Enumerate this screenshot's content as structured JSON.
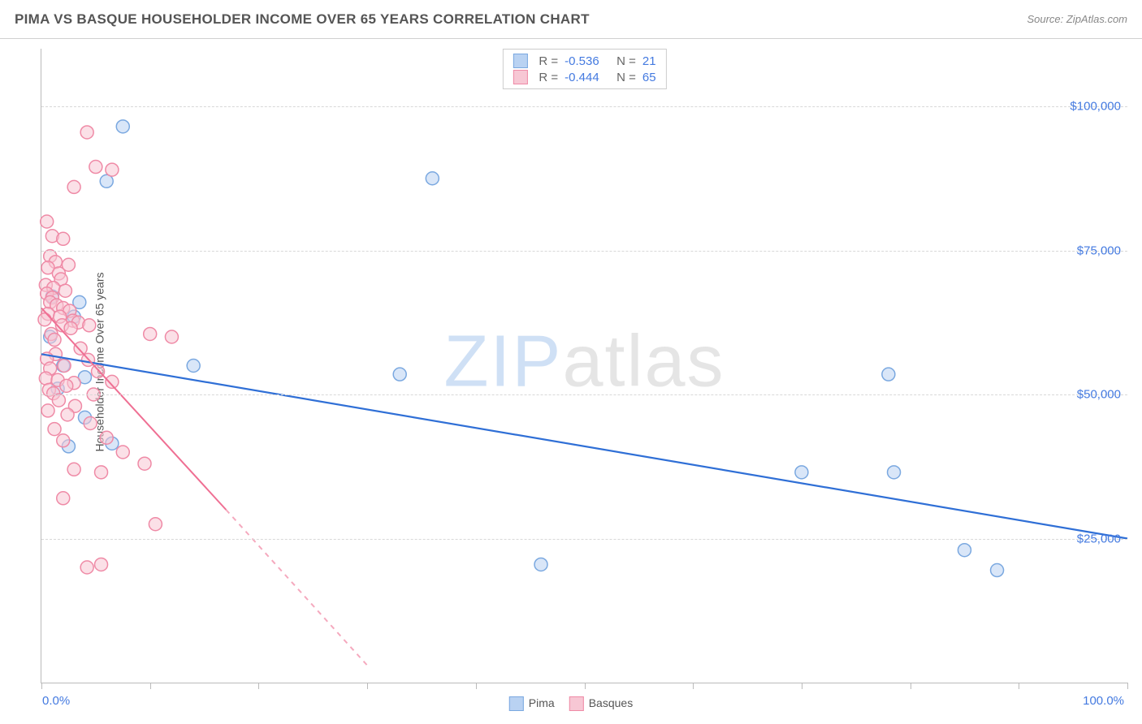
{
  "header": {
    "title": "PIMA VS BASQUE HOUSEHOLDER INCOME OVER 65 YEARS CORRELATION CHART",
    "source": "Source: ZipAtlas.com"
  },
  "watermark": {
    "part1": "ZIP",
    "part2": "atlas"
  },
  "chart": {
    "type": "scatter",
    "ylabel": "Householder Income Over 65 years",
    "xlim": [
      0,
      100
    ],
    "ylim": [
      0,
      110000
    ],
    "xticks_pct": [
      0,
      10,
      20,
      30,
      40,
      50,
      60,
      70,
      80,
      90,
      100
    ],
    "yticks": [
      {
        "value": 25000,
        "label": "$25,000"
      },
      {
        "value": 50000,
        "label": "$50,000"
      },
      {
        "value": 75000,
        "label": "$75,000"
      },
      {
        "value": 100000,
        "label": "$100,000"
      }
    ],
    "xaxis_labels": {
      "left": "0.0%",
      "right": "100.0%"
    },
    "grid_color": "#d8d8d8",
    "background_color": "#ffffff",
    "marker_radius": 8,
    "marker_stroke_width": 1.5,
    "series": [
      {
        "name": "Pima",
        "fill": "#b9d2f2",
        "stroke": "#7aa8e0",
        "fill_opacity": 0.55,
        "r": -0.536,
        "n": 21,
        "trend": {
          "x0": 0,
          "y0": 57000,
          "x1": 100,
          "y1": 25000,
          "stroke": "#2f6fd6",
          "width": 2.2,
          "dash_after_x": null
        },
        "points": [
          [
            7.5,
            96500
          ],
          [
            6.0,
            87000
          ],
          [
            36.0,
            87500
          ],
          [
            1.0,
            67000
          ],
          [
            3.5,
            66000
          ],
          [
            3.0,
            63500
          ],
          [
            0.8,
            60000
          ],
          [
            2.0,
            55000
          ],
          [
            4.0,
            53000
          ],
          [
            1.5,
            51000
          ],
          [
            14.0,
            55000
          ],
          [
            33.0,
            53500
          ],
          [
            4.0,
            46000
          ],
          [
            6.5,
            41500
          ],
          [
            2.5,
            41000
          ],
          [
            78.0,
            53500
          ],
          [
            70.0,
            36500
          ],
          [
            78.5,
            36500
          ],
          [
            85.0,
            23000
          ],
          [
            88.0,
            19500
          ],
          [
            46.0,
            20500
          ]
        ]
      },
      {
        "name": "Basques",
        "fill": "#f7c7d4",
        "stroke": "#ef8aa6",
        "fill_opacity": 0.55,
        "r": -0.444,
        "n": 65,
        "trend": {
          "x0": 0,
          "y0": 65000,
          "x1_solid": 17,
          "y1_solid": 30000,
          "x1": 30,
          "y1": 3000,
          "stroke": "#ef6f93",
          "width": 2,
          "dash_after_x": 17
        },
        "points": [
          [
            4.2,
            95500
          ],
          [
            5.0,
            89500
          ],
          [
            6.5,
            89000
          ],
          [
            3.0,
            86000
          ],
          [
            0.5,
            80000
          ],
          [
            1.0,
            77500
          ],
          [
            2.0,
            77000
          ],
          [
            0.8,
            74000
          ],
          [
            1.3,
            73000
          ],
          [
            2.5,
            72500
          ],
          [
            0.6,
            72000
          ],
          [
            1.6,
            71000
          ],
          [
            1.8,
            70000
          ],
          [
            0.4,
            69000
          ],
          [
            1.1,
            68500
          ],
          [
            2.2,
            68000
          ],
          [
            0.5,
            67500
          ],
          [
            1.0,
            66800
          ],
          [
            0.8,
            66000
          ],
          [
            1.4,
            65500
          ],
          [
            2.0,
            65000
          ],
          [
            2.6,
            64500
          ],
          [
            0.6,
            64000
          ],
          [
            1.7,
            63500
          ],
          [
            0.3,
            63000
          ],
          [
            2.9,
            62800
          ],
          [
            3.4,
            62500
          ],
          [
            1.9,
            62000
          ],
          [
            4.4,
            62000
          ],
          [
            2.7,
            61500
          ],
          [
            0.9,
            60500
          ],
          [
            1.2,
            59500
          ],
          [
            10.0,
            60500
          ],
          [
            12.0,
            60000
          ],
          [
            3.6,
            58000
          ],
          [
            1.3,
            57000
          ],
          [
            0.5,
            56200
          ],
          [
            4.3,
            56000
          ],
          [
            2.1,
            55000
          ],
          [
            0.8,
            54500
          ],
          [
            5.2,
            54000
          ],
          [
            0.4,
            52800
          ],
          [
            1.5,
            52500
          ],
          [
            3.0,
            52000
          ],
          [
            6.5,
            52200
          ],
          [
            2.3,
            51500
          ],
          [
            0.7,
            50800
          ],
          [
            1.1,
            50200
          ],
          [
            4.8,
            50000
          ],
          [
            1.6,
            49000
          ],
          [
            3.1,
            48000
          ],
          [
            0.6,
            47200
          ],
          [
            2.4,
            46500
          ],
          [
            4.5,
            45000
          ],
          [
            1.2,
            44000
          ],
          [
            2.0,
            42000
          ],
          [
            6.0,
            42500
          ],
          [
            7.5,
            40000
          ],
          [
            9.5,
            38000
          ],
          [
            3.0,
            37000
          ],
          [
            5.5,
            36500
          ],
          [
            2.0,
            32000
          ],
          [
            10.5,
            27500
          ],
          [
            4.2,
            20000
          ],
          [
            5.5,
            20500
          ]
        ]
      }
    ],
    "bottom_legend": [
      {
        "label": "Pima",
        "fill": "#b9d2f2",
        "stroke": "#7aa8e0"
      },
      {
        "label": "Basques",
        "fill": "#f7c7d4",
        "stroke": "#ef8aa6"
      }
    ]
  }
}
